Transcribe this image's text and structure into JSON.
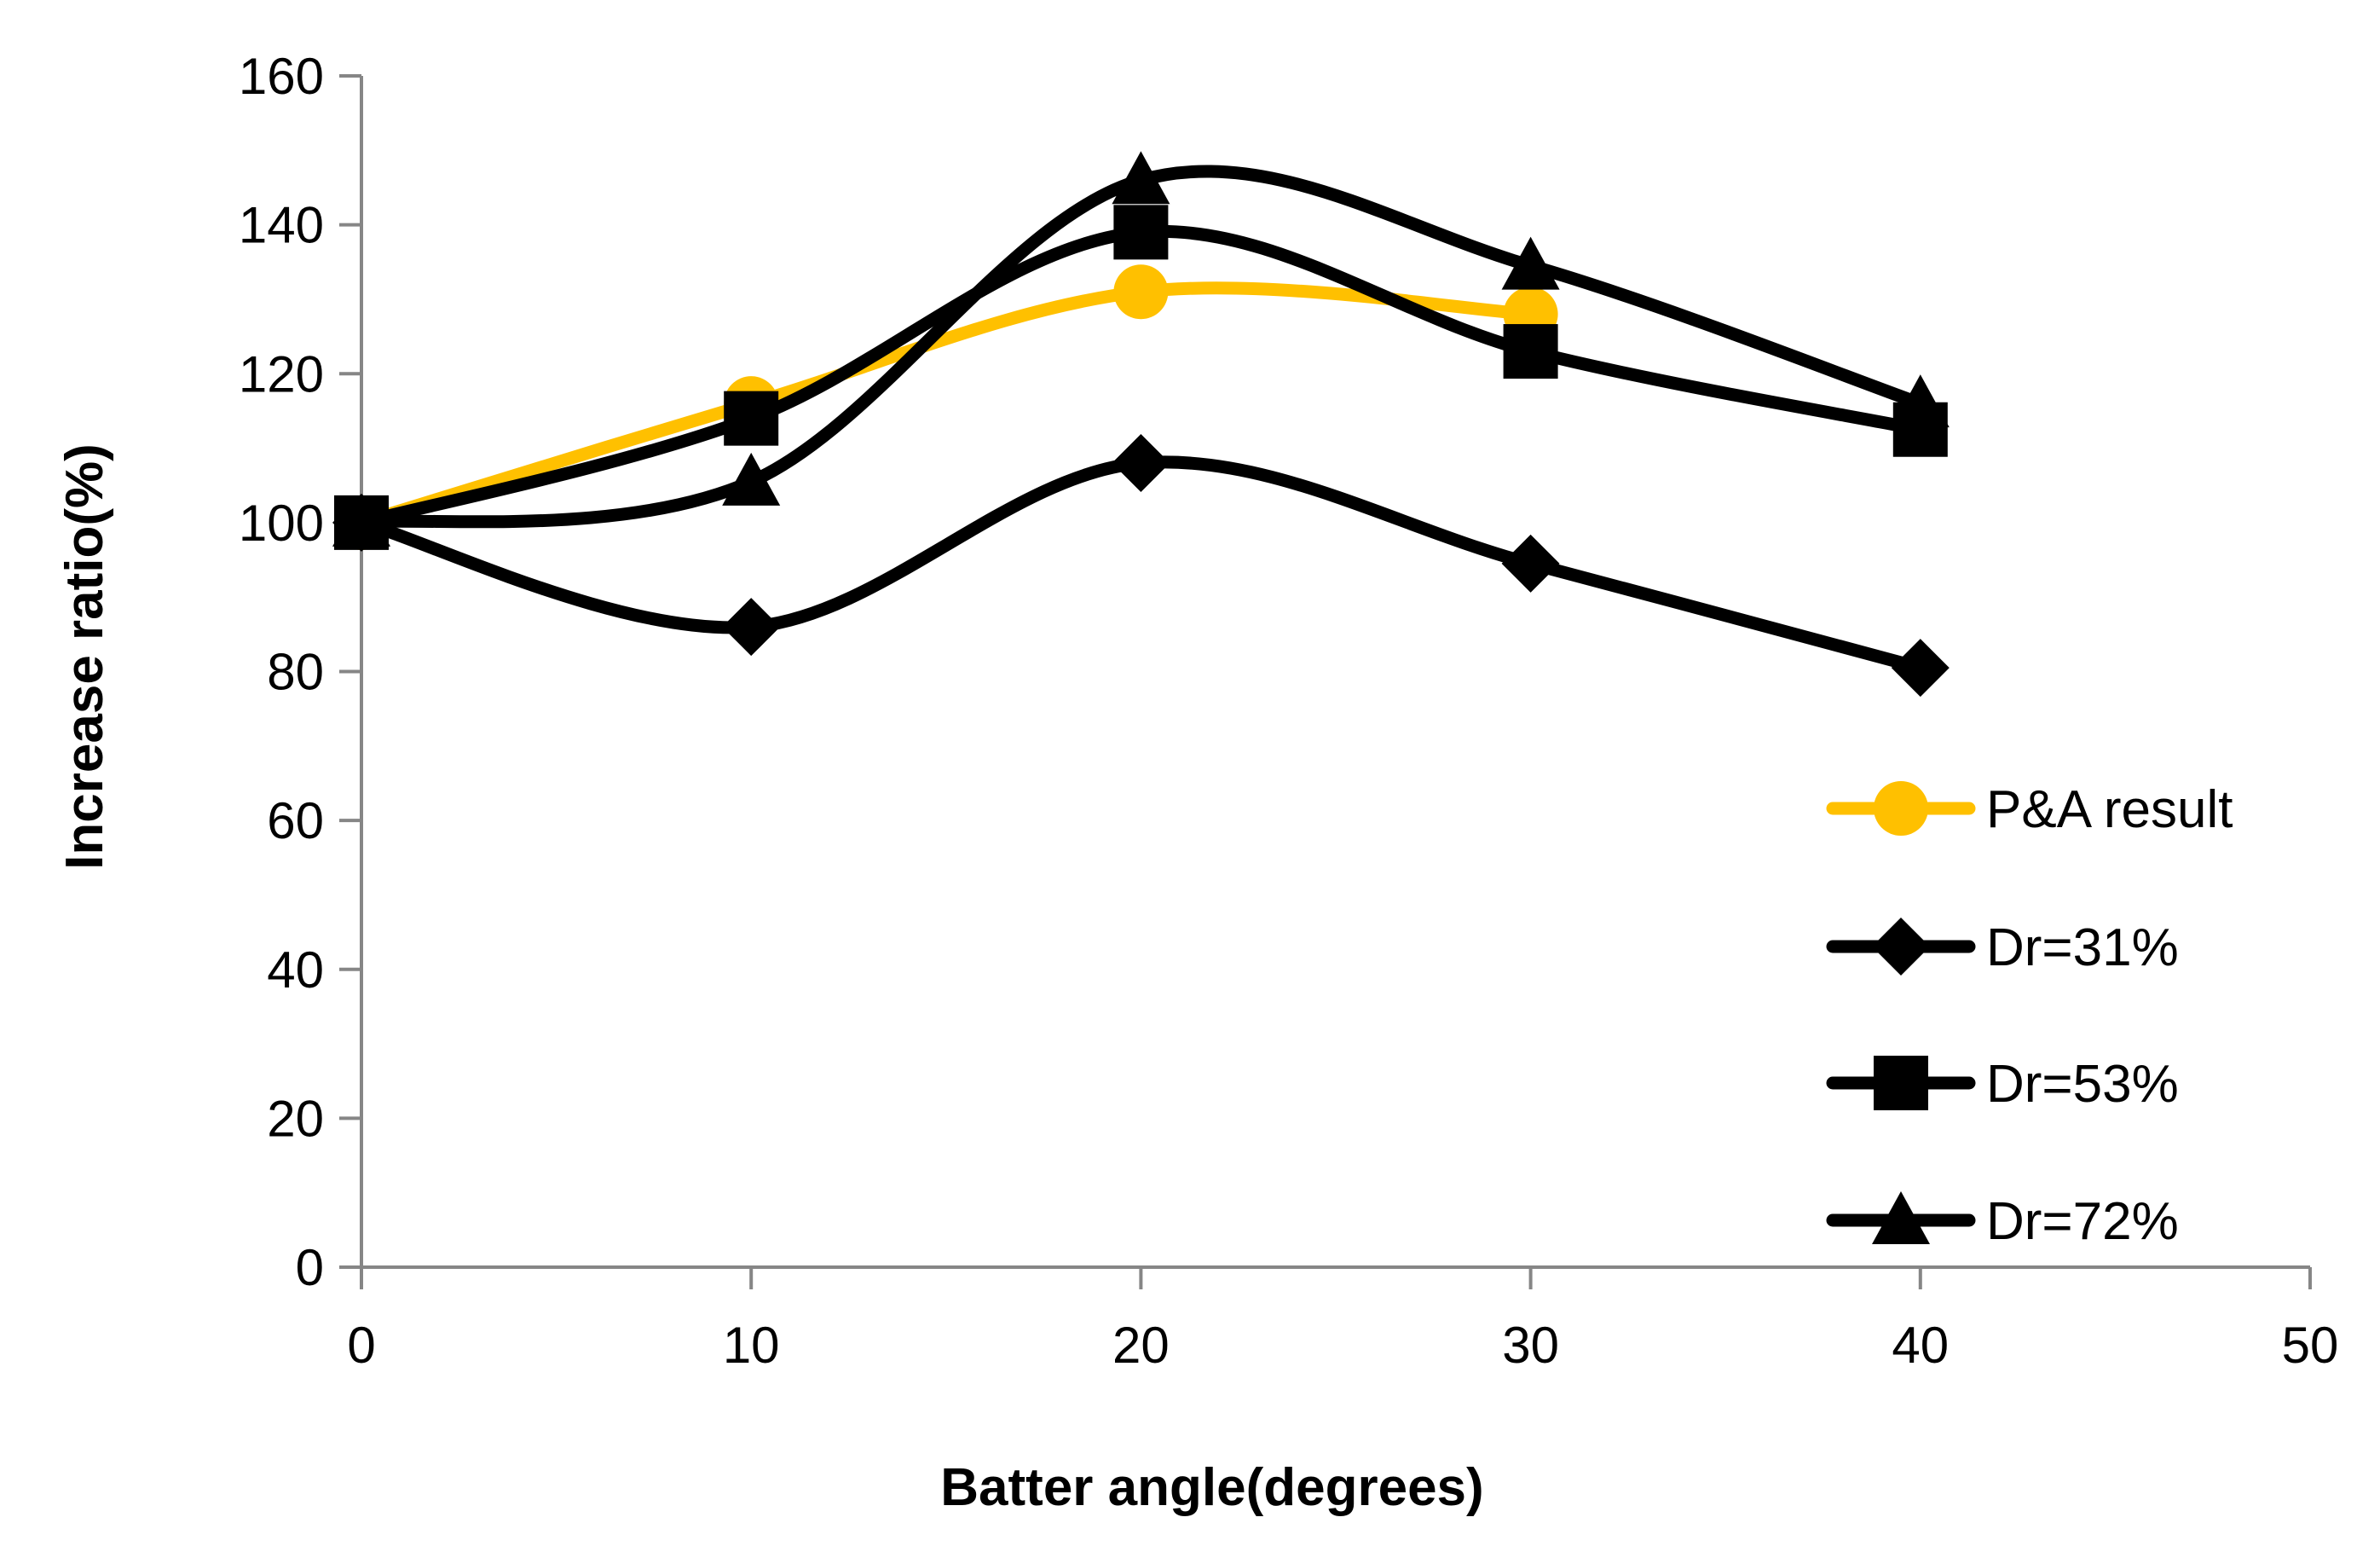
{
  "chart_data": {
    "type": "line",
    "smooth": true,
    "xlabel": "Batter angle(degrees)",
    "ylabel": "Increase ratio(%)",
    "xlim": [
      0,
      50
    ],
    "ylim": [
      0,
      160
    ],
    "xticks": [
      "0",
      "10",
      "20",
      "30",
      "40",
      "50"
    ],
    "yticks": [
      "0",
      "20",
      "40",
      "60",
      "80",
      "100",
      "120",
      "140",
      "160"
    ],
    "grid": false,
    "legend_position": "right",
    "x": [
      0,
      10,
      20,
      30,
      40
    ],
    "series": [
      {
        "name": "P&A result",
        "marker": "circle",
        "color": "#FFC000",
        "x": [
          0,
          10,
          20,
          30
        ],
        "values": [
          100,
          116,
          131,
          128
        ]
      },
      {
        "name": "Dr=31%",
        "marker": "diamond",
        "color": "#000000",
        "x": [
          0,
          10,
          20,
          30,
          40
        ],
        "values": [
          100,
          86,
          108,
          94.5,
          80.5
        ]
      },
      {
        "name": "Dr=53%",
        "marker": "square",
        "color": "#000000",
        "x": [
          0,
          10,
          20,
          30,
          40
        ],
        "values": [
          100,
          114,
          139,
          123,
          112.5
        ]
      },
      {
        "name": "Dr=72%",
        "marker": "triangle",
        "color": "#000000",
        "x": [
          0,
          10,
          20,
          30,
          40
        ],
        "values": [
          100,
          105.5,
          146,
          134.5,
          116
        ]
      }
    ]
  }
}
